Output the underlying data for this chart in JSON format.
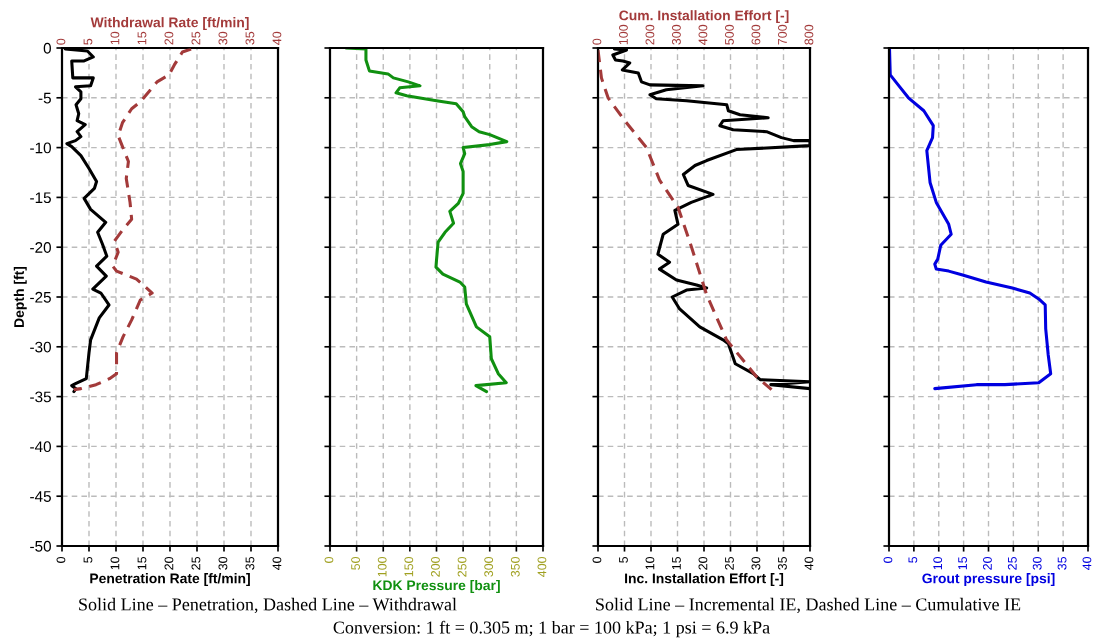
{
  "chart_data": [
    {
      "type": "line",
      "ylabel": "Depth [ft]",
      "xlabel": "Penetration Rate [ft/min]",
      "x2label": "Withdrawal Rate [ft/min]",
      "xlim": [
        0,
        40
      ],
      "xticks": [
        0,
        5,
        10,
        15,
        20,
        25,
        30,
        35,
        40
      ],
      "x2lim": [
        0,
        40
      ],
      "x2ticks": [
        0,
        5,
        10,
        15,
        20,
        25,
        30,
        35,
        40
      ],
      "ylim": [
        -50,
        0
      ],
      "yticks": [
        0,
        -5,
        -10,
        -15,
        -20,
        -25,
        -30,
        -35,
        -40,
        -45,
        -50
      ],
      "grid": true,
      "series": [
        {
          "color": "#000000",
          "line_style": "solid",
          "x": [
            0.6,
            4.7,
            5.8,
            4.1,
            1.8,
            2.0,
            4.5,
            5.8,
            5.3,
            2.5,
            3.5,
            3.5,
            2.6,
            3.1,
            2.8,
            4.3,
            2.8,
            3.5,
            2.5,
            0.9,
            1.8,
            3.5,
            5.0,
            6.4,
            6.0,
            4.1,
            5.3,
            8.1,
            6.6,
            7.5,
            8.3,
            6.4,
            8.2,
            5.7,
            7.2,
            8.7,
            6.9,
            5.3,
            5.0,
            4.5,
            2.5,
            1.8,
            2.6,
            2.2
          ],
          "values": [
            -0.1,
            -0.3,
            -0.9,
            -1.3,
            -1.3,
            -3.0,
            -3.0,
            -3.0,
            -3.8,
            -3.9,
            -4.4,
            -5.1,
            -5.7,
            -6.6,
            -7.3,
            -7.7,
            -8.4,
            -8.9,
            -9.3,
            -9.6,
            -9.9,
            -10.8,
            -12.1,
            -13.4,
            -14.1,
            -15.1,
            -16.2,
            -17.5,
            -18.5,
            -19.7,
            -20.9,
            -21.9,
            -22.9,
            -24.2,
            -24.6,
            -25.8,
            -27.1,
            -29.3,
            -30.6,
            -33.2,
            -33.7,
            -33.9,
            -34.2,
            -34.5
          ]
        },
        {
          "color": "#a33a3a",
          "line_style": "dashed",
          "axis": "x2",
          "x": [
            23.9,
            22.3,
            20.8,
            19.8,
            17.6,
            16.4,
            14.5,
            12.9,
            11.2,
            10.4,
            11.2,
            12.3,
            11.9,
            12.6,
            12.9,
            11.3,
            9.7,
            10.4,
            9.4,
            10.1,
            13.8,
            16.7,
            14.5,
            12.9,
            11.3,
            10.1,
            10.1,
            8.8,
            6.3,
            3.5,
            2.2
          ],
          "values": [
            -0.1,
            -0.4,
            -1.7,
            -2.7,
            -3.4,
            -4.2,
            -5.4,
            -6.1,
            -7.5,
            -8.8,
            -9.9,
            -11.4,
            -13.1,
            -15.5,
            -17.2,
            -18.2,
            -19.4,
            -20.5,
            -21.9,
            -22.4,
            -23.2,
            -24.6,
            -25.3,
            -27.3,
            -29.0,
            -30.6,
            -32.7,
            -33.2,
            -33.8,
            -34.2,
            -34.3
          ]
        }
      ],
      "annotations": [
        "Solid Line – Penetration, Dashed Line – Withdrawal",
        "Conversion: 1 ft = 0.305 m; 1 bar = 100 kPa; 1 psi = 6.9 kPa"
      ]
    },
    {
      "type": "line",
      "xlabel": "KDK Pressure [bar]",
      "tick_labels": "x",
      "xlim": [
        0,
        400
      ],
      "xticks": [
        0,
        50,
        100,
        150,
        200,
        250,
        300,
        350,
        400
      ],
      "ylim": [
        -50,
        0
      ],
      "yticks": [
        0,
        -5,
        -10,
        -15,
        -20,
        -25,
        -30,
        -35,
        -40,
        -45,
        -50
      ],
      "grid": true,
      "series": [
        {
          "color": "#109010",
          "line_style": "solid",
          "x": [
            30,
            67.5,
            67.5,
            74,
            109,
            119,
            147,
            169,
            131,
            124,
            144,
            200,
            237,
            250,
            253,
            266,
            280,
            300,
            332,
            300,
            250,
            253,
            245,
            250,
            250,
            241,
            225,
            232,
            216,
            203,
            200,
            199,
            212,
            244,
            253,
            256,
            275,
            300,
            303,
            316,
            331,
            274,
            294
          ],
          "values": [
            0,
            -0.1,
            -1.2,
            -2.3,
            -2.6,
            -3.0,
            -3.4,
            -3.8,
            -4.0,
            -4.5,
            -4.8,
            -5.3,
            -5.6,
            -6.4,
            -6.9,
            -7.9,
            -8.4,
            -8.7,
            -9.4,
            -9.7,
            -10.0,
            -10.6,
            -11.6,
            -12.4,
            -14.6,
            -15.6,
            -16.4,
            -17.6,
            -18.5,
            -19.5,
            -21.3,
            -22.0,
            -22.7,
            -23.5,
            -24.0,
            -25.7,
            -28.0,
            -29.0,
            -31.2,
            -32.7,
            -33.6,
            -33.9,
            -34.5
          ]
        }
      ]
    },
    {
      "type": "line",
      "xlabel": "Inc. Installation Effort [-]",
      "x2label": "Cum. Installation Effort [-]",
      "tick_labels": "x",
      "xlim": [
        0,
        40
      ],
      "xticks": [
        0,
        5,
        10,
        15,
        20,
        25,
        30,
        35,
        40
      ],
      "x2lim": [
        0,
        800
      ],
      "x2ticks": [
        0,
        100,
        200,
        300,
        400,
        500,
        600,
        700,
        800
      ],
      "ylim": [
        -50,
        0
      ],
      "yticks": [
        0,
        -5,
        -10,
        -15,
        -20,
        -25,
        -30,
        -35,
        -40,
        -45,
        -50
      ],
      "grid": true,
      "series": [
        {
          "color": "#000000",
          "line_style": "solid",
          "x": [
            3.1,
            5.4,
            2.8,
            3.3,
            4.7,
            6.0,
            4.6,
            7.6,
            8.2,
            9.8,
            19.8,
            12.9,
            9.8,
            11.0,
            16.7,
            24.3,
            24.6,
            26.8,
            32.1,
            23.6,
            23.0,
            25.5,
            31.8,
            34.6,
            36.9,
            40,
            40,
            26.1,
            20.5,
            18.3,
            16.1,
            17.0,
            21.7,
            17.6,
            14.5,
            15.1,
            12.3,
            11.3,
            13.5,
            11.6,
            14.8,
            18.6,
            20.5,
            16.7,
            14.0,
            15.4,
            19.2,
            23.6,
            24.6,
            25.9,
            29.3,
            30.6,
            40,
            32.6,
            40
          ],
          "values": [
            -0.1,
            -0.2,
            -0.7,
            -1.2,
            -1.3,
            -1.5,
            -2.2,
            -2.5,
            -3.4,
            -3.7,
            -3.8,
            -4.2,
            -4.7,
            -5.1,
            -5.3,
            -5.7,
            -6.3,
            -6.7,
            -7.0,
            -7.3,
            -7.8,
            -8.2,
            -8.4,
            -9.0,
            -9.3,
            -9.3,
            -9.8,
            -10.2,
            -11.3,
            -11.8,
            -12.7,
            -13.8,
            -14.7,
            -15.5,
            -16.3,
            -17.7,
            -18.7,
            -20.7,
            -21.5,
            -22.2,
            -23.3,
            -23.8,
            -24.1,
            -24.3,
            -25.0,
            -26.2,
            -28.0,
            -29.3,
            -29.7,
            -31.7,
            -32.7,
            -33.3,
            -33.5,
            -33.8,
            -34.2
          ]
        },
        {
          "color": "#a33a3a",
          "line_style": "dashed",
          "axis": "x2",
          "x": [
            0,
            13,
            38,
            101,
            183,
            233,
            302,
            353,
            409,
            485,
            598,
            655
          ],
          "values": [
            -0.2,
            -3.0,
            -5.0,
            -7.3,
            -10.0,
            -13.3,
            -16.0,
            -20.0,
            -24.7,
            -29.3,
            -33.0,
            -34.3
          ]
        }
      ],
      "annotations": [
        "Solid Line – Incremental IE, Dashed Line – Cumulative IE"
      ]
    },
    {
      "type": "line",
      "xlabel": "Grout pressure [psi]",
      "tick_labels": "x",
      "xlim": [
        0,
        40
      ],
      "xticks": [
        0,
        5,
        10,
        15,
        20,
        25,
        30,
        35,
        40
      ],
      "ylim": [
        -50,
        0
      ],
      "yticks": [
        0,
        -5,
        -10,
        -15,
        -20,
        -25,
        -30,
        -35,
        -40,
        -45,
        -50
      ],
      "grid": true,
      "series": [
        {
          "color": "#0000e0",
          "line_style": "solid",
          "x": [
            0.1,
            0.25,
            2.0,
            3.9,
            7.0,
            8.9,
            8.75,
            7.6,
            8.25,
            9.5,
            12.0,
            12.5,
            10.4,
            9.8,
            9.2,
            9.5,
            12.0,
            14.8,
            19.5,
            24.8,
            28.3,
            30.1,
            31.4,
            31.5,
            32.0,
            32.5,
            30.1,
            23.3,
            17.6,
            9.2
          ],
          "values": [
            0,
            -2.7,
            -3.8,
            -5.0,
            -6.3,
            -7.8,
            -9.0,
            -10.3,
            -13.5,
            -15.5,
            -17.7,
            -18.7,
            -19.8,
            -21.2,
            -21.7,
            -22.2,
            -22.4,
            -22.8,
            -23.5,
            -24.1,
            -24.6,
            -25.2,
            -25.8,
            -28.2,
            -30.8,
            -32.7,
            -33.6,
            -33.8,
            -33.8,
            -34.2
          ]
        }
      ]
    }
  ]
}
